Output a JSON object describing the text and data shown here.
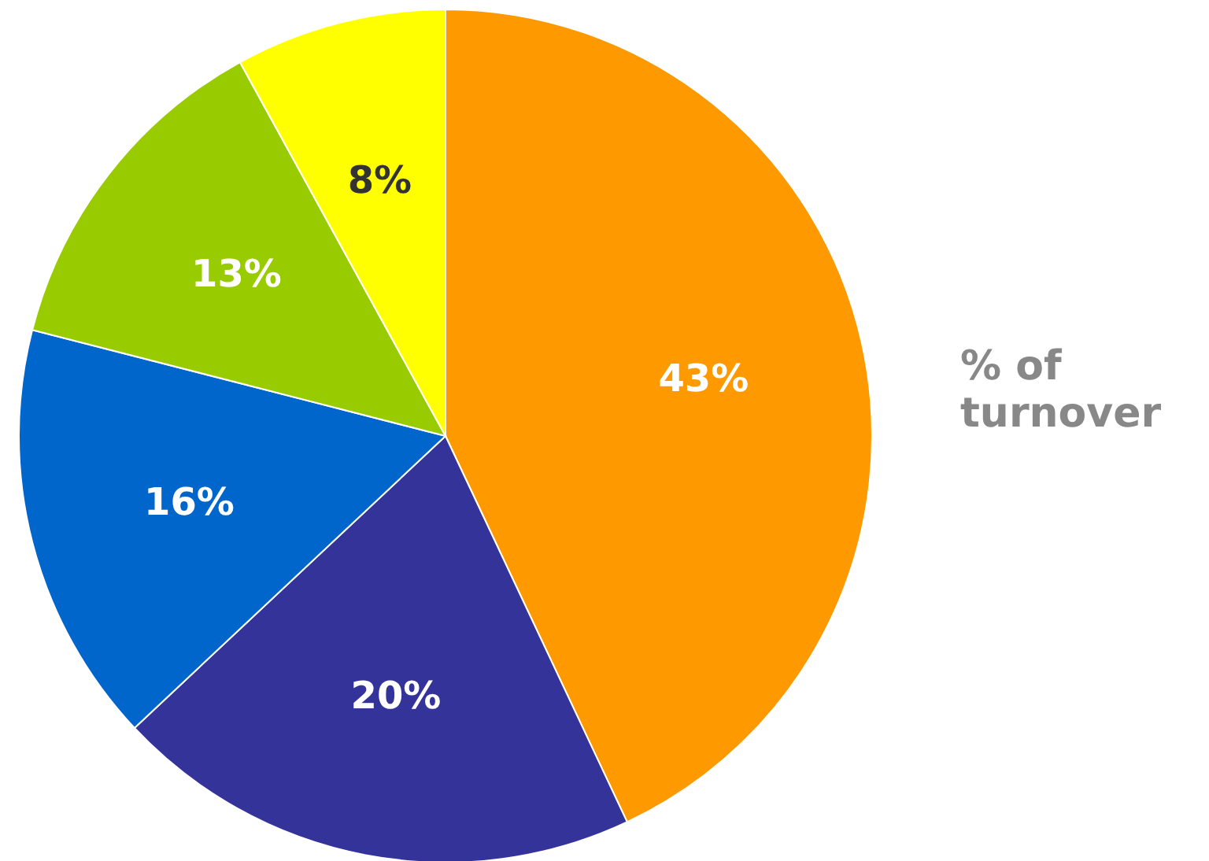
{
  "chart_data": {
    "type": "pie",
    "title": "% of turnover",
    "categories": [
      null,
      null,
      null,
      null,
      null
    ],
    "values": [
      43,
      20,
      16,
      13,
      8
    ],
    "colors": [
      "#ff9900",
      "#333399",
      "#0066cc",
      "#99cc00",
      "#ffff00"
    ],
    "value_labels": [
      "43%",
      "20%",
      "16%",
      "13%",
      "8%"
    ]
  }
}
